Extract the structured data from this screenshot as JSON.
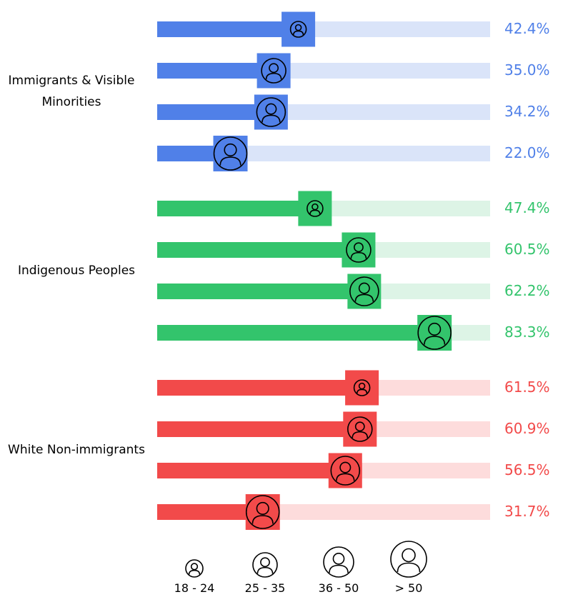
{
  "chart_data": {
    "type": "bar",
    "orientation": "horizontal",
    "xlim": [
      0,
      100
    ],
    "value_format": "percent",
    "age_groups": [
      "18 - 24",
      "25 - 35",
      "36 - 50",
      "> 50"
    ],
    "groups": [
      {
        "name": "Immigrants & Visible Minorities",
        "color": "#5080e8",
        "light_color": "#dae4f9",
        "values": [
          42.4,
          35.0,
          34.2,
          22.0
        ],
        "labels": [
          "42.4%",
          "35.0%",
          "34.2%",
          "22.0%"
        ]
      },
      {
        "name": "Indigenous Peoples",
        "color": "#33c46c",
        "light_color": "#ddf4e6",
        "values": [
          47.4,
          60.5,
          62.2,
          83.3
        ],
        "labels": [
          "47.4%",
          "60.5%",
          "62.2%",
          "83.3%"
        ]
      },
      {
        "name": "White Non-immigrants",
        "color": "#f24a4a",
        "light_color": "#fddcdc",
        "values": [
          61.5,
          60.9,
          56.5,
          31.7
        ],
        "labels": [
          "61.5%",
          "60.9%",
          "56.5%",
          "31.7%"
        ]
      }
    ]
  },
  "legend": {
    "items": [
      "18 - 24",
      "25 - 35",
      "36 - 50",
      "> 50"
    ],
    "icon": "person-icon"
  }
}
